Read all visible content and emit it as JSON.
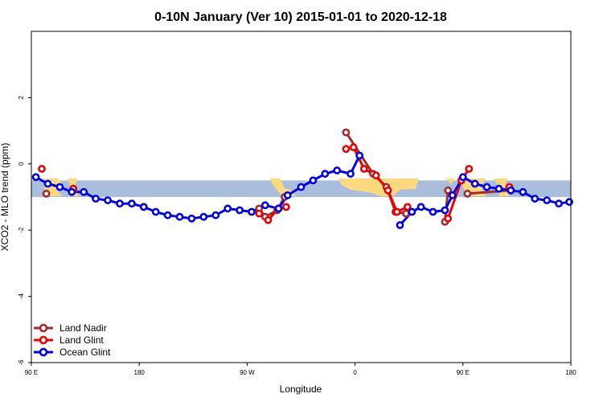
{
  "chart_data": {
    "type": "line",
    "title": "0-10N January (Ver 10)   2015-01-01 to 2020-12-18",
    "xlabel": "Longitude",
    "ylabel": "XCO2 - MLO trend (ppm)",
    "xlim": [
      -90,
      270
    ],
    "ylim": [
      -6,
      4
    ],
    "x_ticks": [
      {
        "value": -90,
        "label": "90 E"
      },
      {
        "value": -18,
        "label": "180"
      },
      {
        "value": 54,
        "label": "90 W"
      },
      {
        "value": 126,
        "label": "0"
      },
      {
        "value": 198,
        "label": "90 E"
      },
      {
        "value": 270,
        "label": "180"
      }
    ],
    "y_ticks": [
      -6,
      -4,
      -2,
      0,
      2
    ],
    "grid": false,
    "legend_position": "bottom-left",
    "band": {
      "ymin": -1.0,
      "ymax": -0.5,
      "ocean_color": "#a9bedd",
      "land_color": "#fdd97e"
    },
    "series": [
      {
        "name": "Land Nadir",
        "color": "#a52a2a",
        "segments": [
          [
            [
              -80,
              -0.9
            ]
          ],
          [
            [
              -62,
              -0.8
            ]
          ],
          [
            [
              62,
              -1.35
            ],
            [
              66,
              -1.6
            ],
            [
              74,
              -1.4
            ],
            [
              79,
              -1.0
            ]
          ],
          [
            [
              120,
              0.95
            ],
            [
              138,
              -0.3
            ],
            [
              147,
              -0.7
            ],
            [
              153,
              -1.45
            ],
            [
              160,
              -1.5
            ]
          ],
          [
            [
              186,
              -1.75
            ],
            [
              188,
              -0.8
            ]
          ],
          [
            [
              201,
              -0.9
            ],
            [
              230,
              -0.8
            ]
          ]
        ]
      },
      {
        "name": "Land Glint",
        "color": "#ee0000",
        "segments": [
          [
            [
              -83,
              -0.15
            ]
          ],
          [
            [
              -62,
              -0.75
            ]
          ],
          [
            [
              62,
              -1.5
            ],
            [
              68,
              -1.7
            ],
            [
              75,
              -1.35
            ],
            [
              80,
              -1.3
            ]
          ],
          [
            [
              120,
              0.45
            ],
            [
              125,
              0.5
            ],
            [
              132,
              -0.15
            ],
            [
              140,
              -0.35
            ],
            [
              148,
              -0.8
            ],
            [
              154,
              -1.45
            ],
            [
              161,
              -1.3
            ]
          ],
          [
            [
              188,
              -1.65
            ],
            [
              197,
              -0.5
            ],
            [
              202,
              -0.15
            ]
          ],
          [
            [
              229,
              -0.7
            ]
          ]
        ]
      },
      {
        "name": "Ocean Glint",
        "color": "#0000ee",
        "segments": [
          [
            [
              -87,
              -0.4
            ],
            [
              -79,
              -0.6
            ],
            [
              -71,
              -0.7
            ],
            [
              -63,
              -0.85
            ],
            [
              -55,
              -0.85
            ],
            [
              -47,
              -1.05
            ],
            [
              -39,
              -1.1
            ],
            [
              -31,
              -1.2
            ],
            [
              -23,
              -1.2
            ],
            [
              -15,
              -1.3
            ],
            [
              -7,
              -1.45
            ],
            [
              1,
              -1.55
            ],
            [
              9,
              -1.6
            ],
            [
              17,
              -1.65
            ],
            [
              25,
              -1.6
            ],
            [
              33,
              -1.55
            ],
            [
              41,
              -1.35
            ],
            [
              49,
              -1.4
            ],
            [
              57,
              -1.45
            ],
            [
              66,
              -1.25
            ],
            [
              75,
              -1.35
            ],
            [
              81,
              -0.95
            ],
            [
              90,
              -0.7
            ],
            [
              98,
              -0.5
            ],
            [
              106,
              -0.3
            ],
            [
              114,
              -0.2
            ],
            [
              123,
              -0.3
            ],
            [
              129,
              0.25
            ]
          ],
          [
            [
              156,
              -1.85
            ],
            [
              164,
              -1.45
            ],
            [
              170,
              -1.3
            ],
            [
              178,
              -1.45
            ],
            [
              186,
              -1.4
            ],
            [
              191,
              -0.95
            ],
            [
              198,
              -0.4
            ],
            [
              206,
              -0.6
            ],
            [
              214,
              -0.7
            ],
            [
              222,
              -0.75
            ],
            [
              230,
              -0.8
            ],
            [
              238,
              -0.85
            ],
            [
              246,
              -1.05
            ],
            [
              254,
              -1.1
            ],
            [
              262,
              -1.2
            ],
            [
              269,
              -1.15
            ]
          ]
        ]
      }
    ]
  }
}
